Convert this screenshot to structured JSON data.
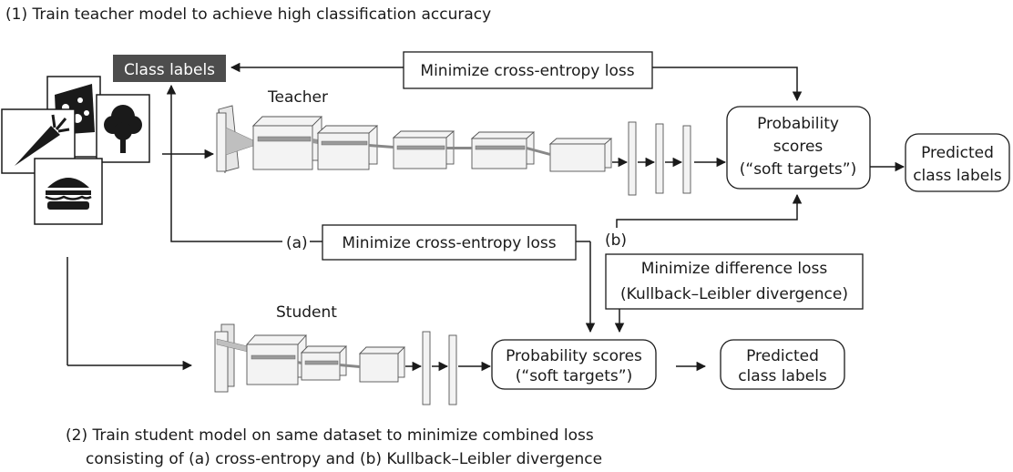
{
  "step1": "(1) Train teacher model to achieve high classification accuracy",
  "step2_line1": "(2) Train student model on same dataset to minimize combined loss",
  "step2_line2": "consisting of (a) cross-entropy and (b) Kullback–Leibler divergence",
  "class_labels": "Class labels",
  "teacher_label": "Teacher",
  "student_label": "Student",
  "teacher_loss": "Minimize cross-entropy loss",
  "student_ce": {
    "tag": "(a)",
    "text": "Minimize cross-entropy loss"
  },
  "kl": {
    "tag": "(b)",
    "line1": "Minimize difference loss",
    "line2": "(Kullback–Leibler divergence)"
  },
  "teacher_prob": {
    "line1": "Probability",
    "line2": "scores",
    "line3": "(“soft targets”)"
  },
  "teacher_pred": {
    "line1": "Predicted",
    "line2": "class labels"
  },
  "student_prob": {
    "line1": "Probability scores",
    "line2": "(“soft targets”)"
  },
  "student_pred": {
    "line1": "Predicted",
    "line2": "class labels"
  },
  "icons": [
    "cheese-icon",
    "carrot-icon",
    "tree-icon",
    "burger-icon"
  ]
}
